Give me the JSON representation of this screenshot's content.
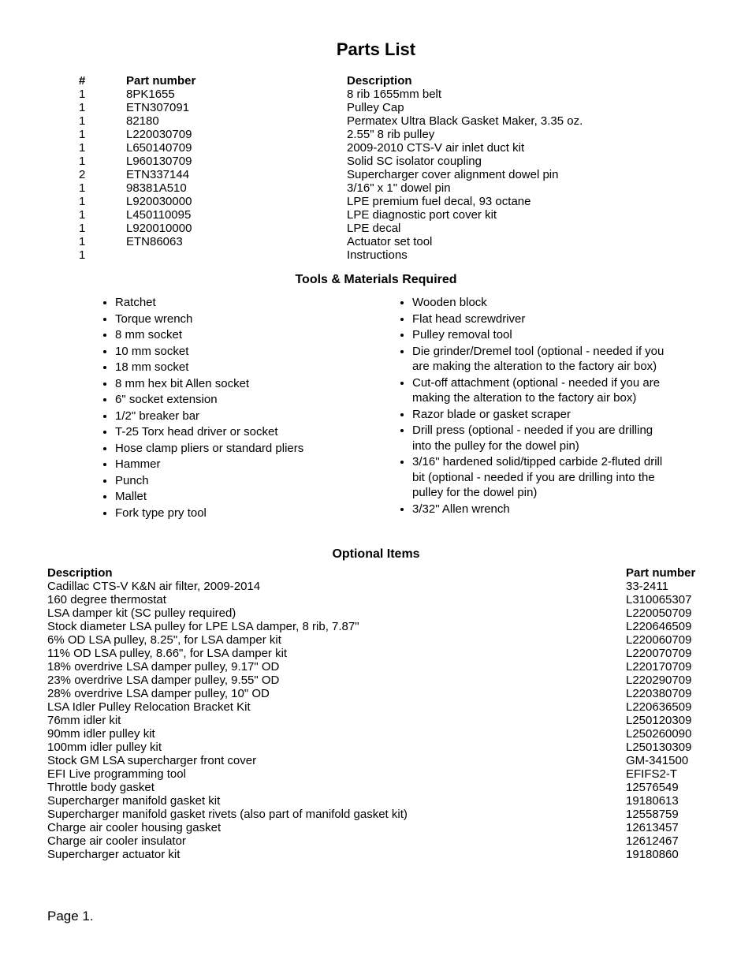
{
  "title": "Parts List",
  "parts": {
    "headers": {
      "qty": "#",
      "pn": "Part number",
      "desc": "Description"
    },
    "rows": [
      {
        "qty": "1",
        "pn": "8PK1655",
        "desc": "8 rib 1655mm belt"
      },
      {
        "qty": "1",
        "pn": "ETN307091",
        "desc": "Pulley Cap"
      },
      {
        "qty": "1",
        "pn": "82180",
        "desc": "Permatex Ultra Black Gasket Maker, 3.35 oz."
      },
      {
        "qty": "1",
        "pn": "L220030709",
        "desc": "2.55\" 8 rib pulley"
      },
      {
        "qty": "1",
        "pn": "L650140709",
        "desc": "2009-2010 CTS-V air inlet duct kit"
      },
      {
        "qty": "1",
        "pn": "L960130709",
        "desc": "Solid SC isolator coupling"
      },
      {
        "qty": "2",
        "pn": "ETN337144",
        "desc": "Supercharger cover alignment dowel pin"
      },
      {
        "qty": "1",
        "pn": "98381A510",
        "desc": "3/16\" x 1\" dowel pin"
      },
      {
        "qty": "1",
        "pn": "L920030000",
        "desc": "LPE premium fuel decal, 93 octane"
      },
      {
        "qty": "1",
        "pn": "L450110095",
        "desc": "LPE diagnostic port cover kit"
      },
      {
        "qty": "1",
        "pn": "L920010000",
        "desc": "LPE decal"
      },
      {
        "qty": "1",
        "pn": "ETN86063",
        "desc": "Actuator set tool"
      },
      {
        "qty": "1",
        "pn": "",
        "desc": "Instructions"
      }
    ]
  },
  "tools_heading": "Tools & Materials Required",
  "tools_left": [
    "Ratchet",
    "Torque wrench",
    "8 mm socket",
    "10 mm socket",
    "18 mm socket",
    "8 mm hex bit Allen socket",
    "6\" socket extension",
    "1/2\" breaker bar",
    "T-25 Torx head driver or socket",
    "Hose clamp pliers or standard pliers",
    "Hammer",
    "Punch",
    "Mallet",
    "Fork type pry tool"
  ],
  "tools_right": [
    "Wooden block",
    "Flat head screwdriver",
    "Pulley removal tool",
    "Die grinder/Dremel tool (optional - needed if you are making the alteration to the factory air box)",
    "Cut-off attachment (optional - needed if you are making the alteration to the factory air box)",
    "Razor blade or gasket scraper",
    "Drill press (optional - needed if you are drilling into the pulley for the dowel pin)",
    "3/16\" hardened solid/tipped carbide 2-fluted drill bit (optional - needed if you are drilling into the pulley for the dowel pin)",
    "3/32\" Allen wrench"
  ],
  "optional_heading": "Optional Items",
  "optional": {
    "headers": {
      "desc": "Description",
      "pn": "Part number"
    },
    "rows": [
      {
        "desc": "Cadillac CTS-V K&N air filter, 2009-2014",
        "pn": "33-2411"
      },
      {
        "desc": "160 degree thermostat",
        "pn": "L310065307"
      },
      {
        "desc": "LSA damper kit (SC pulley required)",
        "pn": "L220050709"
      },
      {
        "desc": "Stock diameter LSA pulley for LPE LSA damper, 8 rib, 7.87\"",
        "pn": "L220646509"
      },
      {
        "desc": "6% OD LSA pulley, 8.25\", for LSA damper kit",
        "pn": "L220060709"
      },
      {
        "desc": "11% OD LSA pulley, 8.66\", for LSA damper kit",
        "pn": "L220070709"
      },
      {
        "desc": "18% overdrive LSA damper pulley, 9.17\" OD",
        "pn": "L220170709"
      },
      {
        "desc": "23% overdrive LSA damper pulley, 9.55\" OD",
        "pn": "L220290709"
      },
      {
        "desc": "28% overdrive LSA damper pulley, 10\" OD",
        "pn": "L220380709"
      },
      {
        "desc": "LSA Idler Pulley Relocation Bracket Kit",
        "pn": "L220636509"
      },
      {
        "desc": "76mm idler kit",
        "pn": "L250120309"
      },
      {
        "desc": "90mm idler pulley kit",
        "pn": "L250260090"
      },
      {
        "desc": "100mm idler pulley kit",
        "pn": "L250130309"
      },
      {
        "desc": "Stock GM LSA supercharger front cover",
        "pn": "GM-341500"
      },
      {
        "desc": "EFI Live programming tool",
        "pn": "EFIFS2-T"
      },
      {
        "desc": "Throttle body gasket",
        "pn": "12576549"
      },
      {
        "desc": "Supercharger manifold gasket kit",
        "pn": "19180613"
      },
      {
        "desc": "Supercharger manifold gasket rivets (also part of manifold gasket kit)",
        "pn": "12558759"
      },
      {
        "desc": "Charge air cooler housing gasket",
        "pn": "12613457"
      },
      {
        "desc": "Charge air cooler insulator",
        "pn": "12612467"
      },
      {
        "desc": "Supercharger actuator kit",
        "pn": "19180860"
      }
    ]
  },
  "page_label": "Page 1."
}
